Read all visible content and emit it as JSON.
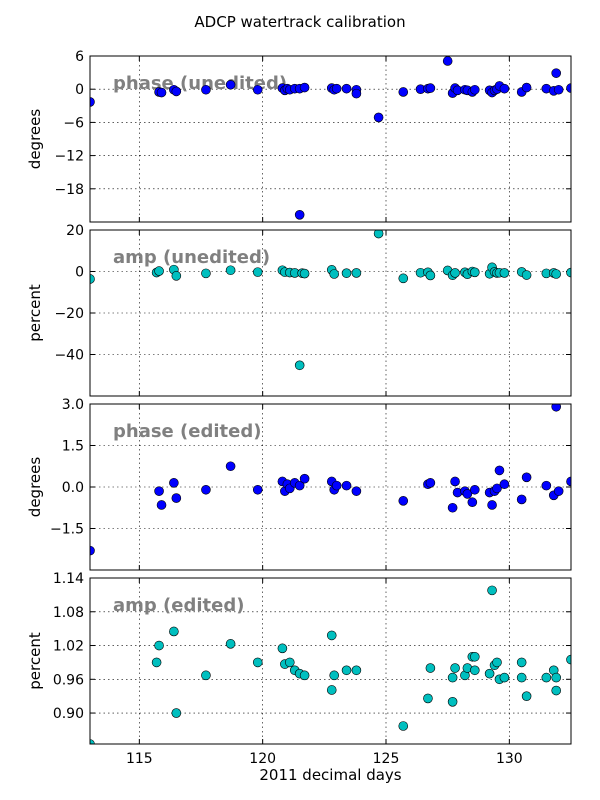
{
  "chart_data": {
    "type": "scatter",
    "title": "ADCP watertrack calibration",
    "xlabel": "2011 decimal days",
    "xlim": [
      113.0,
      132.5
    ],
    "xticks": [
      115,
      120,
      125,
      130
    ],
    "xtick_labels": [
      "115",
      "120",
      "125",
      "130"
    ],
    "grid": true,
    "panels": [
      {
        "annotation": "phase (unedited)",
        "ylabel": "degrees",
        "ylim": [
          -24,
          6
        ],
        "yticks": [
          6,
          0,
          -6,
          -12,
          -18
        ],
        "ytick_labels": [
          "6",
          "0",
          "−6",
          "−12",
          "−18"
        ],
        "color": "#0000ff",
        "points": [
          [
            113,
            -2.3
          ],
          [
            115.8,
            -0.5
          ],
          [
            115.9,
            -0.6
          ],
          [
            116.4,
            -0.1
          ],
          [
            116.5,
            -0.4
          ],
          [
            117.7,
            -0.1
          ],
          [
            118.7,
            0.8
          ],
          [
            119.8,
            -0.1
          ],
          [
            120.8,
            0.2
          ],
          [
            120.9,
            -0.2
          ],
          [
            121,
            0.1
          ],
          [
            121.1,
            -0.1
          ],
          [
            121.3,
            0.1
          ],
          [
            121.5,
            -22.7
          ],
          [
            121.5,
            0.1
          ],
          [
            121.7,
            0.3
          ],
          [
            122.8,
            0.2
          ],
          [
            122.9,
            -0.1
          ],
          [
            123,
            0.1
          ],
          [
            123.4,
            0.1
          ],
          [
            123.8,
            -0.1
          ],
          [
            123.8,
            -0.8
          ],
          [
            124.7,
            -5.1
          ],
          [
            125.7,
            -0.5
          ],
          [
            126.4,
            0.0
          ],
          [
            126.7,
            0.1
          ],
          [
            126.8,
            0.2
          ],
          [
            127.5,
            5.1
          ],
          [
            127.7,
            -0.7
          ],
          [
            127.8,
            0.2
          ],
          [
            127.9,
            -0.2
          ],
          [
            128.2,
            -0.1
          ],
          [
            128.3,
            -0.2
          ],
          [
            128.5,
            -0.5
          ],
          [
            128.6,
            -0.1
          ],
          [
            129.2,
            -0.2
          ],
          [
            129.3,
            -0.6
          ],
          [
            129.4,
            -0.2
          ],
          [
            129.5,
            0.0
          ],
          [
            129.6,
            0.6
          ],
          [
            129.8,
            0.1
          ],
          [
            130.5,
            -0.5
          ],
          [
            130.7,
            0.3
          ],
          [
            131.5,
            0.1
          ],
          [
            131.8,
            -0.3
          ],
          [
            131.9,
            2.9
          ],
          [
            132.0,
            -0.1
          ],
          [
            132.5,
            0.2
          ]
        ]
      },
      {
        "annotation": "amp (unedited)",
        "ylabel": "percent",
        "ylim": [
          -60,
          20
        ],
        "yticks": [
          20,
          0,
          -20,
          -40
        ],
        "ytick_labels": [
          "20",
          "0",
          "−20",
          "−40"
        ],
        "color": "#00bfbf",
        "points": [
          [
            113,
            -3.6
          ],
          [
            115.7,
            -0.5
          ],
          [
            115.8,
            0.2
          ],
          [
            116.4,
            0.9
          ],
          [
            116.5,
            -2.1
          ],
          [
            117.7,
            -0.9
          ],
          [
            118.7,
            0.6
          ],
          [
            119.8,
            -0.3
          ],
          [
            120.8,
            0.6
          ],
          [
            120.9,
            -0.3
          ],
          [
            121.1,
            -0.5
          ],
          [
            121.3,
            -0.7
          ],
          [
            121.5,
            -45.2
          ],
          [
            121.6,
            -0.8
          ],
          [
            121.7,
            -1.0
          ],
          [
            122.8,
            0.8
          ],
          [
            122.9,
            -1.2
          ],
          [
            123.4,
            -0.8
          ],
          [
            123.8,
            -0.7
          ],
          [
            124.7,
            18.3
          ],
          [
            125.7,
            -3.3
          ],
          [
            126.4,
            -0.6
          ],
          [
            126.7,
            -0.4
          ],
          [
            126.8,
            -1.9
          ],
          [
            127.5,
            0.5
          ],
          [
            127.7,
            -1.8
          ],
          [
            127.8,
            -0.7
          ],
          [
            128.2,
            -0.4
          ],
          [
            128.3,
            -1.3
          ],
          [
            128.5,
            0.0
          ],
          [
            128.6,
            -0.4
          ],
          [
            129.2,
            -1.1
          ],
          [
            129.3,
            2.0
          ],
          [
            129.4,
            -0.2
          ],
          [
            129.5,
            -0.7
          ],
          [
            129.6,
            -0.6
          ],
          [
            129.8,
            -0.7
          ],
          [
            130.5,
            -0.2
          ],
          [
            130.7,
            -1.7
          ],
          [
            131.5,
            -0.9
          ],
          [
            131.8,
            -0.7
          ],
          [
            131.9,
            -1.2
          ],
          [
            132.5,
            -0.5
          ]
        ]
      },
      {
        "annotation": "phase (edited)",
        "ylabel": "degrees",
        "ylim": [
          -3,
          3
        ],
        "yticks": [
          3,
          1.5,
          0,
          -1.5
        ],
        "ytick_labels": [
          "3.0",
          "1.5",
          "0.0",
          "−1.5"
        ],
        "color": "#0000ff",
        "points": [
          [
            113,
            -2.3
          ],
          [
            115.8,
            -0.15
          ],
          [
            115.9,
            -0.65
          ],
          [
            116.4,
            0.15
          ],
          [
            116.5,
            -0.4
          ],
          [
            117.7,
            -0.1
          ],
          [
            118.7,
            0.75
          ],
          [
            119.8,
            -0.1
          ],
          [
            120.8,
            0.2
          ],
          [
            120.9,
            -0.15
          ],
          [
            121,
            0.1
          ],
          [
            121.1,
            -0.05
          ],
          [
            121.3,
            0.15
          ],
          [
            121.5,
            0.05
          ],
          [
            121.7,
            0.3
          ],
          [
            122.8,
            0.2
          ],
          [
            122.9,
            -0.1
          ],
          [
            123,
            0.05
          ],
          [
            123.4,
            0.05
          ],
          [
            123.8,
            -0.15
          ],
          [
            125.7,
            -0.5
          ],
          [
            126.7,
            0.1
          ],
          [
            126.8,
            0.15
          ],
          [
            127.7,
            -0.75
          ],
          [
            127.8,
            0.2
          ],
          [
            127.9,
            -0.2
          ],
          [
            128.2,
            -0.15
          ],
          [
            128.3,
            -0.25
          ],
          [
            128.5,
            -0.55
          ],
          [
            128.6,
            -0.1
          ],
          [
            129.2,
            -0.2
          ],
          [
            129.3,
            -0.65
          ],
          [
            129.4,
            -0.15
          ],
          [
            129.5,
            -0.05
          ],
          [
            129.6,
            0.6
          ],
          [
            129.8,
            0.1
          ],
          [
            130.5,
            -0.45
          ],
          [
            130.7,
            0.35
          ],
          [
            131.5,
            0.05
          ],
          [
            131.8,
            -0.3
          ],
          [
            131.9,
            2.9
          ],
          [
            132.0,
            -0.15
          ],
          [
            132.5,
            0.2
          ]
        ]
      },
      {
        "annotation": "amp (edited)",
        "ylabel": "percent",
        "ylim": [
          0.845,
          1.14
        ],
        "yticks": [
          1.14,
          1.08,
          1.02,
          0.96,
          0.9
        ],
        "ytick_labels": [
          "1.14",
          "1.08",
          "1.02",
          "0.96",
          "0.90"
        ],
        "color": "#00bfbf",
        "points": [
          [
            113,
            0.845
          ],
          [
            115.7,
            0.99
          ],
          [
            115.8,
            1.02
          ],
          [
            116.4,
            1.045
          ],
          [
            116.5,
            0.9
          ],
          [
            117.7,
            0.967
          ],
          [
            118.7,
            1.023
          ],
          [
            119.8,
            0.99
          ],
          [
            120.8,
            1.015
          ],
          [
            120.9,
            0.987
          ],
          [
            121.1,
            0.99
          ],
          [
            121.3,
            0.976
          ],
          [
            121.5,
            0.97
          ],
          [
            121.7,
            0.967
          ],
          [
            122.8,
            1.038
          ],
          [
            122.8,
            0.941
          ],
          [
            122.9,
            0.967
          ],
          [
            123.4,
            0.976
          ],
          [
            123.8,
            0.976
          ],
          [
            125.7,
            0.877
          ],
          [
            126.7,
            0.926
          ],
          [
            126.8,
            0.98
          ],
          [
            127.7,
            0.963
          ],
          [
            127.7,
            0.92
          ],
          [
            127.8,
            0.98
          ],
          [
            128.2,
            0.967
          ],
          [
            128.3,
            0.98
          ],
          [
            128.5,
            1.0
          ],
          [
            128.6,
            1.0
          ],
          [
            128.6,
            0.976
          ],
          [
            129.2,
            0.97
          ],
          [
            129.3,
            1.118
          ],
          [
            129.4,
            0.985
          ],
          [
            129.5,
            0.99
          ],
          [
            129.6,
            0.96
          ],
          [
            129.8,
            0.963
          ],
          [
            130.5,
            0.99
          ],
          [
            130.5,
            0.963
          ],
          [
            130.7,
            0.93
          ],
          [
            131.5,
            0.963
          ],
          [
            131.8,
            0.976
          ],
          [
            131.9,
            0.963
          ],
          [
            131.9,
            0.94
          ],
          [
            132.5,
            0.995
          ]
        ]
      }
    ]
  }
}
